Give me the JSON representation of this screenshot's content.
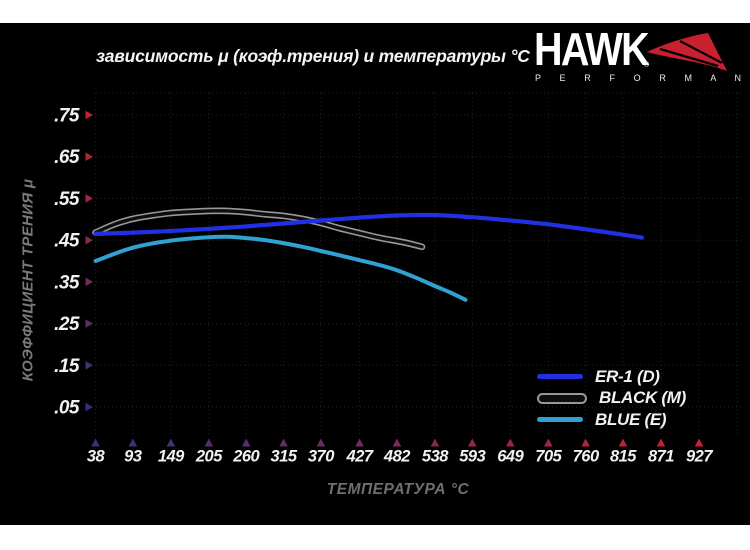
{
  "title": "зависимость μ (коэф.трения) и температуры °C",
  "logo": {
    "brand": "HAWK",
    "reg": "®",
    "sub": "P E R F O R M A N C E",
    "wing_color": "#c8202f"
  },
  "legend": [
    {
      "label": "ER-1 (D)",
      "color": "#2130e2"
    },
    {
      "label": "BLACK (M)",
      "color": "#0d0d0d",
      "outline": "#989898"
    },
    {
      "label": "BLUE (E)",
      "color": "#31a0d2"
    }
  ],
  "chart_data": {
    "type": "line",
    "title": "зависимость μ (коэф.трения) и температуры °C",
    "xlabel": "ТЕМПЕРАТУРА °C",
    "ylabel": "КОЭФФИЦИЕНТ ТРЕНИЯ μ",
    "x_ticks": [
      38,
      93,
      149,
      205,
      260,
      315,
      370,
      427,
      482,
      538,
      593,
      649,
      705,
      760,
      815,
      871,
      927
    ],
    "y_ticks": [
      ".05",
      ".15",
      ".25",
      ".35",
      ".45",
      ".55",
      ".65",
      ".75"
    ],
    "y_tick_values": [
      0.05,
      0.15,
      0.25,
      0.35,
      0.45,
      0.55,
      0.65,
      0.75
    ],
    "xlim": [
      38,
      927
    ],
    "ylim": [
      0,
      0.8
    ],
    "grid": "dotted",
    "legend_position": "lower right",
    "axis_colors": {
      "red": "#c92130",
      "blue": "#32327e"
    },
    "series": [
      {
        "name": "ER-1 (D)",
        "color": "#2130e2",
        "points": [
          [
            38,
            0.465
          ],
          [
            93,
            0.468
          ],
          [
            149,
            0.472
          ],
          [
            205,
            0.477
          ],
          [
            260,
            0.483
          ],
          [
            315,
            0.49
          ],
          [
            370,
            0.497
          ],
          [
            427,
            0.504
          ],
          [
            482,
            0.509
          ],
          [
            538,
            0.51
          ],
          [
            593,
            0.505
          ],
          [
            649,
            0.497
          ],
          [
            705,
            0.488
          ],
          [
            760,
            0.476
          ],
          [
            815,
            0.463
          ],
          [
            843,
            0.456
          ]
        ]
      },
      {
        "name": "BLACK (M)",
        "color": "#0d0d0d",
        "outline": "#989898",
        "points": [
          [
            38,
            0.468
          ],
          [
            66,
            0.488
          ],
          [
            93,
            0.501
          ],
          [
            121,
            0.509
          ],
          [
            149,
            0.515
          ],
          [
            177,
            0.518
          ],
          [
            205,
            0.52
          ],
          [
            233,
            0.52
          ],
          [
            260,
            0.517
          ],
          [
            288,
            0.512
          ],
          [
            315,
            0.508
          ],
          [
            343,
            0.501
          ],
          [
            370,
            0.491
          ],
          [
            399,
            0.478
          ],
          [
            427,
            0.467
          ],
          [
            455,
            0.456
          ],
          [
            482,
            0.448
          ],
          [
            500,
            0.442
          ],
          [
            519,
            0.434
          ]
        ]
      },
      {
        "name": "BLUE (E)",
        "color": "#31a0d2",
        "points": [
          [
            38,
            0.4
          ],
          [
            93,
            0.432
          ],
          [
            149,
            0.449
          ],
          [
            205,
            0.457
          ],
          [
            233,
            0.458
          ],
          [
            260,
            0.455
          ],
          [
            288,
            0.45
          ],
          [
            315,
            0.443
          ],
          [
            343,
            0.434
          ],
          [
            370,
            0.424
          ],
          [
            399,
            0.413
          ],
          [
            427,
            0.402
          ],
          [
            455,
            0.391
          ],
          [
            482,
            0.378
          ],
          [
            510,
            0.36
          ],
          [
            538,
            0.34
          ],
          [
            560,
            0.325
          ],
          [
            583,
            0.307
          ]
        ]
      }
    ]
  }
}
